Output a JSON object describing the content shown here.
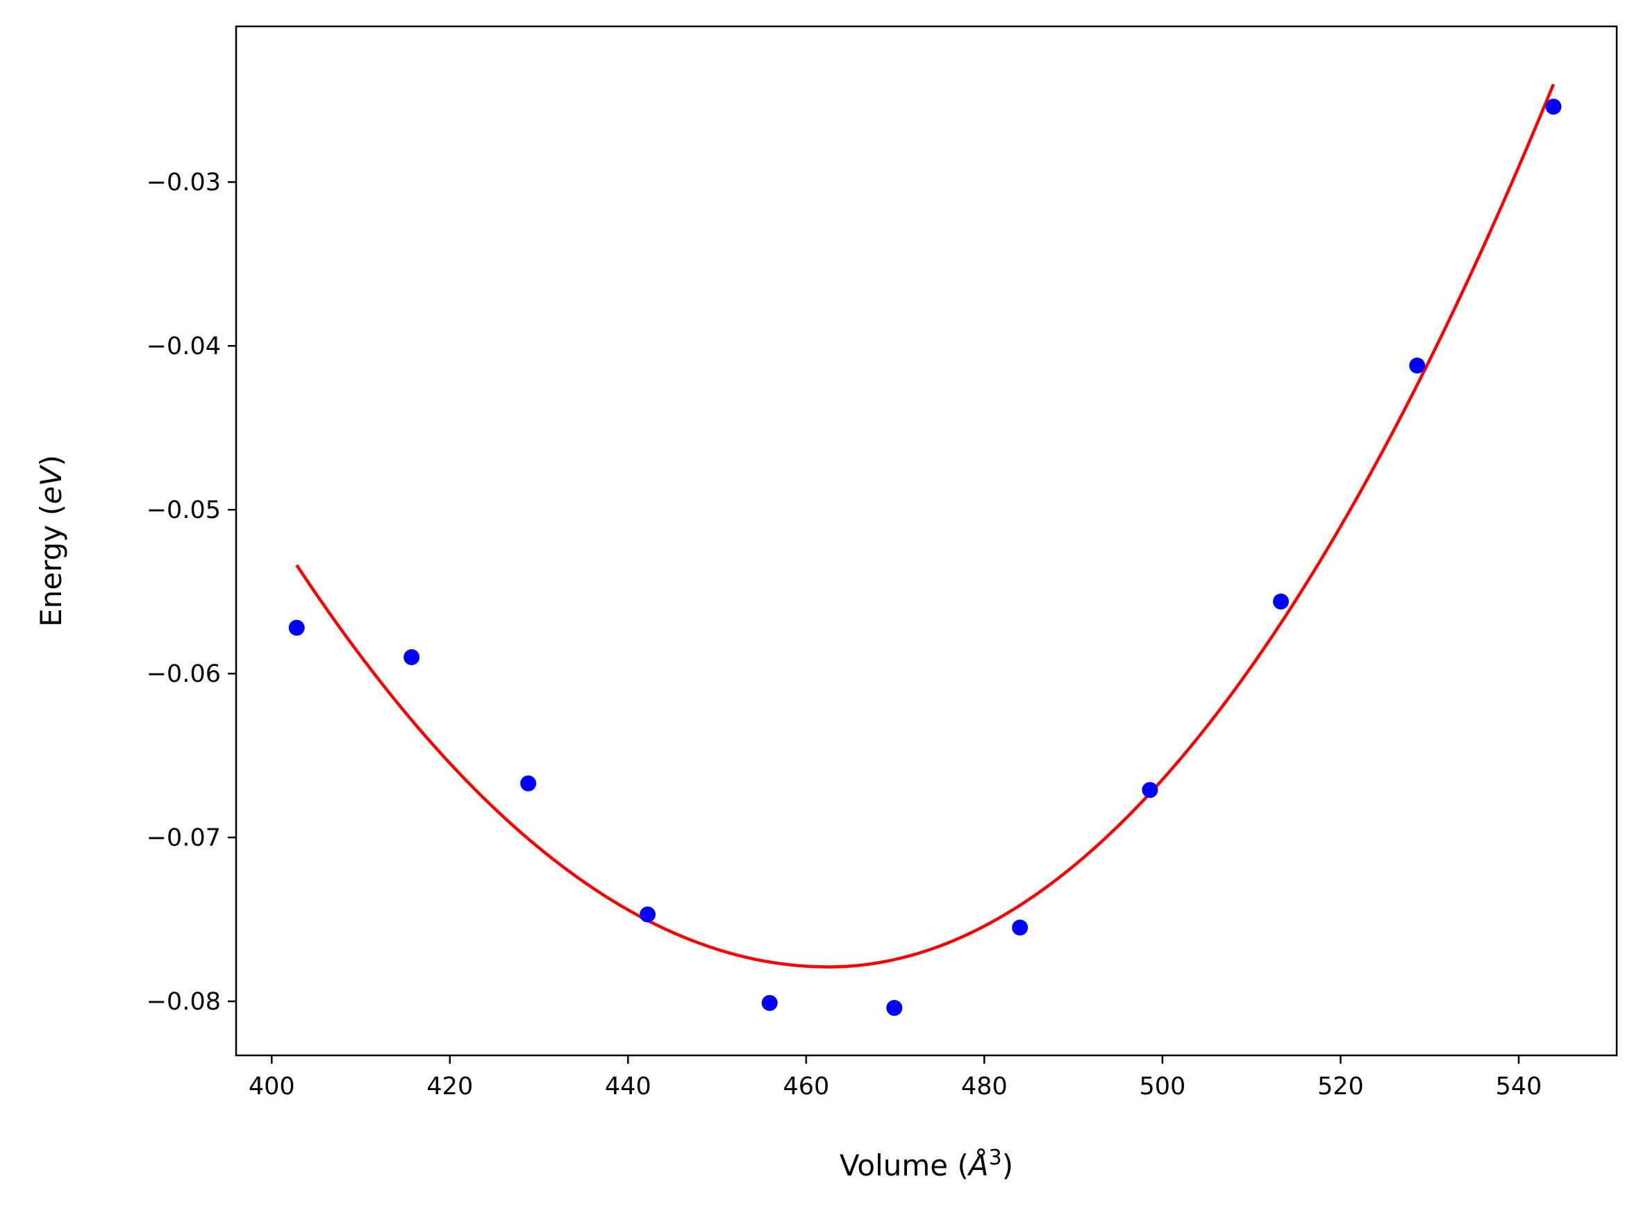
{
  "chart_data": {
    "type": "scatter",
    "xlabel": {
      "prefix": "Volume (",
      "symbol": "Å",
      "sup": "3",
      "suffix": ")"
    },
    "ylabel": {
      "prefix": "Energy (",
      "symbol": "eV",
      "suffix": ")"
    },
    "xlim": [
      396,
      551
    ],
    "ylim": [
      -0.0833,
      -0.0205
    ],
    "xticks": [
      400,
      420,
      440,
      460,
      480,
      500,
      520,
      540
    ],
    "xtick_labels": [
      "400",
      "420",
      "440",
      "460",
      "480",
      "500",
      "520",
      "540"
    ],
    "yticks": [
      -0.08,
      -0.07,
      -0.06,
      -0.05,
      -0.04,
      -0.03
    ],
    "ytick_labels": [
      "−0.08",
      "−0.07",
      "−0.06",
      "−0.05",
      "−0.04",
      "−0.03"
    ],
    "grid": false,
    "series": [
      {
        "kind": "points",
        "color": "#0000ff",
        "x": [
          402.8,
          415.7,
          428.8,
          442.2,
          455.9,
          469.9,
          484.0,
          498.6,
          513.3,
          528.6,
          543.9
        ],
        "y": [
          -0.0572,
          -0.059,
          -0.0667,
          -0.0747,
          -0.0801,
          -0.0804,
          -0.0755,
          -0.0671,
          -0.0556,
          -0.0412,
          -0.0254
        ]
      },
      {
        "kind": "fit-curve",
        "color": "#ff0000",
        "x_start": 402.8,
        "x_end": 543.9,
        "min_volume": 462.5,
        "min_energy": -0.0779,
        "coef_left": 6.88e-06,
        "coef_right": 8.13e-06
      }
    ]
  }
}
